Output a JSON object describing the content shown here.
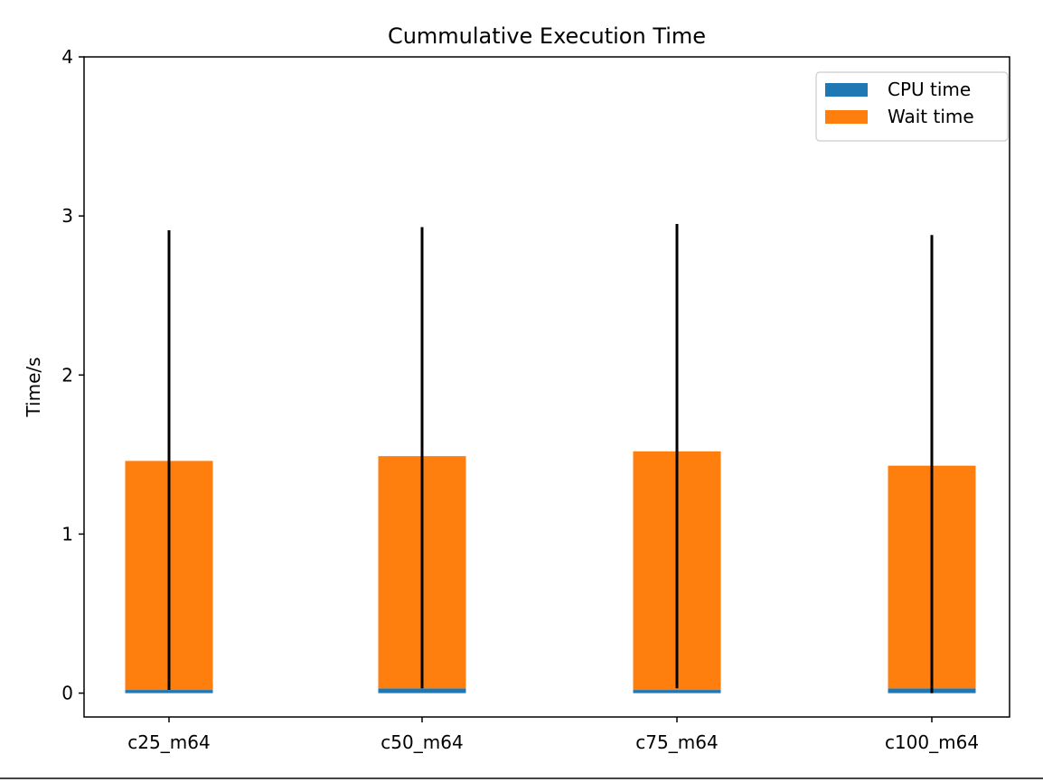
{
  "chart_data": {
    "type": "bar",
    "stacked": true,
    "title": "Cummulative Execution Time",
    "xlabel": "",
    "ylabel": "Time/s",
    "ylim": [
      -0.15,
      4.0
    ],
    "yticks": [
      0,
      1,
      2,
      3,
      4
    ],
    "categories": [
      "c25_m64",
      "c50_m64",
      "c75_m64",
      "c100_m64"
    ],
    "series": [
      {
        "name": "CPU time",
        "color": "#1f77b4",
        "values": [
          0.02,
          0.03,
          0.02,
          0.03
        ]
      },
      {
        "name": "Wait time",
        "color": "#ff7f0e",
        "values": [
          1.44,
          1.46,
          1.5,
          1.4
        ]
      }
    ],
    "error_bars": {
      "color": "#000000",
      "ranges": [
        [
          0.02,
          2.91
        ],
        [
          0.03,
          2.93
        ],
        [
          0.03,
          2.95
        ],
        [
          0.0,
          2.88
        ]
      ]
    },
    "legend": {
      "position": "top-right"
    },
    "grid": false
  }
}
